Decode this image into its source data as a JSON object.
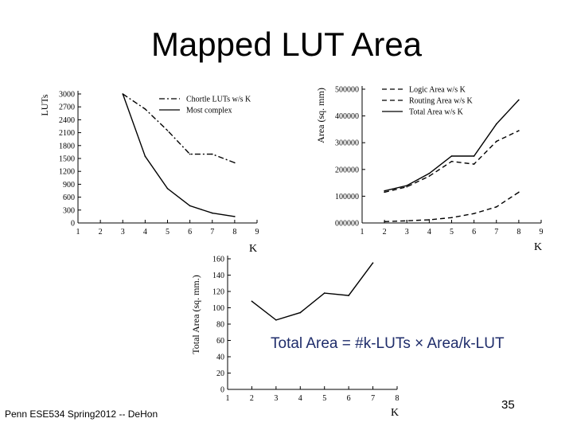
{
  "slide": {
    "title": "Mapped LUT Area",
    "footer": "Penn ESE534 Spring2012 -- DeHon",
    "page_number": "35",
    "formula": "Total Area = #k-LUTs × Area/k-LUT"
  },
  "chart_data": [
    {
      "type": "line",
      "ylabel": "LUTs",
      "xlabel": "K",
      "xlim": [
        1,
        9
      ],
      "ylim": [
        0,
        3000
      ],
      "x_ticks": [
        1,
        2,
        3,
        4,
        5,
        6,
        7,
        8,
        9
      ],
      "y_ticks": [
        0,
        300,
        600,
        900,
        1200,
        1500,
        1800,
        2100,
        2400,
        2700,
        3000
      ],
      "legend_position": "top-right",
      "series": [
        {
          "name": "Chortle LUTs w/s K",
          "style": "dashdot",
          "x": [
            3,
            4,
            5,
            6,
            7,
            8
          ],
          "values": [
            3000,
            2650,
            2150,
            1600,
            1600,
            1400
          ]
        },
        {
          "name": "Most complex",
          "style": "solid",
          "x": [
            3,
            4,
            5,
            6,
            7,
            8
          ],
          "values": [
            3000,
            1550,
            800,
            400,
            230,
            150
          ]
        }
      ]
    },
    {
      "type": "line",
      "ylabel": "Area (sq. mm)",
      "xlabel": "K",
      "xlim": [
        1,
        9
      ],
      "ylim": [
        0,
        500000
      ],
      "x_ticks": [
        1,
        2,
        3,
        4,
        5,
        6,
        7,
        8,
        9
      ],
      "y_ticks": [
        0,
        100000,
        200000,
        300000,
        400000,
        500000
      ],
      "legend_position": "top-right",
      "series": [
        {
          "name": "Logic Area w/s K",
          "style": "dashed",
          "x": [
            2,
            3,
            4,
            5,
            6,
            7,
            8
          ],
          "values": [
            5000,
            8000,
            12000,
            20000,
            35000,
            60000,
            115000
          ]
        },
        {
          "name": "Routing Area w/s K",
          "style": "dashed",
          "x": [
            2,
            3,
            4,
            5,
            6,
            7,
            8
          ],
          "values": [
            115000,
            135000,
            175000,
            230000,
            220000,
            305000,
            345000
          ]
        },
        {
          "name": "Total Area w/s K",
          "style": "solid",
          "x": [
            2,
            3,
            4,
            5,
            6,
            7,
            8
          ],
          "values": [
            120000,
            140000,
            185000,
            250000,
            250000,
            370000,
            460000
          ]
        }
      ]
    },
    {
      "type": "line",
      "ylabel": "Total Area (sq. mm.)",
      "xlabel": "K",
      "xlim": [
        1,
        8
      ],
      "ylim": [
        0,
        160
      ],
      "x_ticks": [
        1,
        2,
        3,
        4,
        5,
        6,
        7,
        8
      ],
      "y_ticks": [
        0,
        20,
        40,
        60,
        80,
        100,
        120,
        140,
        160
      ],
      "series": [
        {
          "name": "",
          "style": "solid",
          "x": [
            2,
            3,
            4,
            5,
            6,
            7
          ],
          "values": [
            108,
            85,
            94,
            118,
            115,
            155
          ]
        }
      ]
    }
  ]
}
